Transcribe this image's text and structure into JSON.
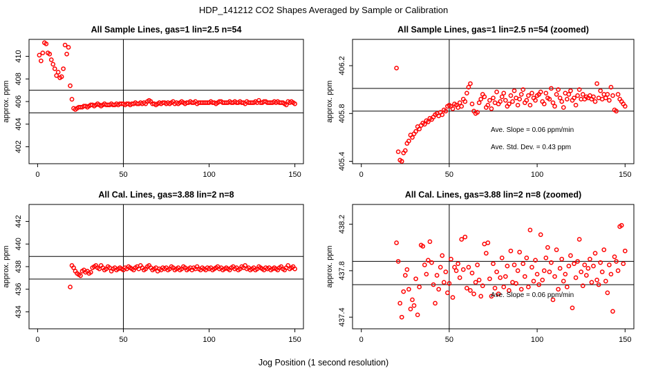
{
  "figure_title": "HDP_141212  CO2 Shapes Averaged by Sample or Calibration",
  "figure_xlabel": "Jog Position (1 second resolution)",
  "colors": {
    "points": "#ff0000",
    "lines": "#000000",
    "frame": "#000000"
  },
  "chart_data": [
    {
      "type": "scatter",
      "title": "All Sample Lines, gas=1 lin=2.5 n=54",
      "xlabel": "",
      "ylabel": "approx. ppm",
      "xlim": [
        -5,
        155
      ],
      "ylim": [
        400.5,
        411.5
      ],
      "xticks": [
        0,
        50,
        100,
        150
      ],
      "yticks": [
        402,
        404,
        406,
        408,
        410
      ],
      "vline": 50,
      "hlines": [
        407.0,
        405.0
      ],
      "annotations": [],
      "x": [
        1,
        2,
        3,
        4,
        5,
        6,
        7,
        8,
        9,
        10,
        11,
        12,
        13,
        14,
        15,
        16,
        17,
        18,
        19,
        20,
        21,
        22,
        23,
        24,
        25,
        26,
        27,
        28,
        29,
        30,
        31,
        32,
        33,
        34,
        35,
        36,
        37,
        38,
        39,
        40,
        41,
        42,
        43,
        44,
        45,
        46,
        47,
        48,
        49,
        50,
        51,
        52,
        53,
        54,
        55,
        56,
        57,
        58,
        59,
        60,
        61,
        62,
        63,
        64,
        65,
        66,
        67,
        68,
        69,
        70,
        71,
        72,
        73,
        74,
        75,
        76,
        77,
        78,
        79,
        80,
        81,
        82,
        83,
        84,
        85,
        86,
        87,
        88,
        89,
        90,
        91,
        92,
        93,
        94,
        95,
        96,
        97,
        98,
        99,
        100,
        101,
        102,
        103,
        104,
        105,
        106,
        107,
        108,
        109,
        110,
        111,
        112,
        113,
        114,
        115,
        116,
        117,
        118,
        119,
        120,
        121,
        122,
        123,
        124,
        125,
        126,
        127,
        128,
        129,
        130,
        131,
        132,
        133,
        134,
        135,
        136,
        137,
        138,
        139,
        140,
        141,
        142,
        143,
        144,
        145,
        146,
        147,
        148,
        149,
        150
      ],
      "y": [
        410.1,
        409.6,
        410.3,
        411.2,
        411.1,
        410.3,
        410.2,
        409.7,
        409.3,
        408.9,
        408.3,
        408.6,
        408.1,
        408.2,
        408.9,
        411.0,
        410.2,
        410.8,
        407.4,
        406.2,
        405.4,
        405.3,
        405.4,
        405.5,
        405.5,
        405.5,
        405.6,
        405.6,
        405.5,
        405.6,
        405.7,
        405.7,
        405.6,
        405.7,
        405.8,
        405.7,
        405.6,
        405.7,
        405.8,
        405.7,
        405.7,
        405.7,
        405.8,
        405.7,
        405.7,
        405.8,
        405.7,
        405.8,
        405.8,
        405.8,
        405.7,
        405.8,
        405.8,
        405.7,
        405.8,
        405.8,
        405.9,
        405.8,
        405.8,
        405.9,
        405.8,
        405.9,
        405.8,
        406.0,
        406.1,
        406.0,
        405.8,
        405.8,
        405.7,
        405.8,
        405.9,
        405.8,
        405.9,
        405.9,
        405.8,
        405.9,
        405.8,
        405.9,
        406.0,
        405.8,
        405.9,
        405.8,
        405.9,
        406.0,
        405.9,
        405.8,
        405.9,
        405.9,
        406.0,
        405.9,
        405.9,
        406.0,
        405.8,
        405.9,
        405.9,
        405.9,
        405.9,
        405.9,
        405.9,
        405.9,
        406.0,
        405.9,
        405.9,
        405.8,
        405.9,
        406.0,
        406.0,
        405.9,
        405.9,
        405.9,
        405.9,
        406.0,
        405.9,
        405.9,
        406.0,
        405.9,
        405.9,
        406.0,
        405.9,
        405.9,
        405.8,
        406.0,
        405.9,
        405.9,
        405.9,
        405.9,
        406.0,
        405.9,
        406.1,
        405.9,
        405.9,
        406.0,
        406.0,
        405.9,
        405.9,
        405.9,
        405.9,
        406.0,
        405.9,
        406.0,
        405.9,
        405.9,
        405.9,
        405.8,
        405.7,
        406.0,
        405.9,
        406.0,
        405.9,
        405.8
      ]
    },
    {
      "type": "scatter",
      "title": "All Sample Lines, gas=1 lin=2.5 n=54 (zoomed)",
      "xlabel": "",
      "ylabel": "approx. ppm",
      "xlim": [
        -5,
        155
      ],
      "ylim": [
        405.38,
        406.42
      ],
      "xticks": [
        0,
        50,
        100,
        150
      ],
      "yticks": [
        405.4,
        405.8,
        406.2
      ],
      "vline": 50,
      "hlines": [
        406.01,
        405.82
      ],
      "annotations": [
        "Ave. Slope =  0.06  ppm/min",
        "Ave. Std. Dev. =  0.43  ppm"
      ],
      "x": [
        20,
        21,
        22,
        23,
        24,
        25,
        26,
        27,
        28,
        29,
        30,
        31,
        32,
        33,
        34,
        35,
        36,
        37,
        38,
        39,
        40,
        41,
        42,
        43,
        44,
        45,
        46,
        47,
        48,
        49,
        50,
        51,
        52,
        53,
        54,
        55,
        56,
        57,
        58,
        59,
        60,
        61,
        62,
        63,
        64,
        65,
        66,
        67,
        68,
        69,
        70,
        71,
        72,
        73,
        74,
        75,
        76,
        77,
        78,
        79,
        80,
        81,
        82,
        83,
        84,
        85,
        86,
        87,
        88,
        89,
        90,
        91,
        92,
        93,
        94,
        95,
        96,
        97,
        98,
        99,
        100,
        101,
        102,
        103,
        104,
        105,
        106,
        107,
        108,
        109,
        110,
        111,
        112,
        113,
        114,
        115,
        116,
        117,
        118,
        119,
        120,
        121,
        122,
        123,
        124,
        125,
        126,
        127,
        128,
        129,
        130,
        131,
        132,
        133,
        134,
        135,
        136,
        137,
        138,
        139,
        140,
        141,
        142,
        143,
        144,
        145,
        146,
        147,
        148,
        149,
        150
      ],
      "y": [
        406.18,
        405.48,
        405.41,
        405.4,
        405.47,
        405.49,
        405.55,
        405.57,
        405.62,
        405.6,
        405.63,
        405.65,
        405.69,
        405.67,
        405.7,
        405.72,
        405.71,
        405.74,
        405.73,
        405.76,
        405.75,
        405.77,
        405.79,
        405.8,
        405.78,
        405.81,
        405.79,
        405.83,
        405.82,
        405.86,
        405.87,
        405.86,
        405.84,
        405.88,
        405.87,
        405.85,
        405.89,
        405.86,
        405.92,
        405.9,
        405.97,
        406.02,
        406.05,
        405.88,
        405.82,
        405.8,
        405.81,
        405.89,
        405.92,
        405.96,
        405.94,
        405.85,
        405.87,
        405.91,
        405.84,
        405.93,
        405.89,
        405.98,
        405.88,
        405.9,
        405.94,
        405.97,
        405.91,
        405.86,
        405.88,
        405.95,
        405.9,
        405.99,
        405.93,
        405.87,
        405.92,
        405.96,
        406.0,
        405.89,
        405.91,
        405.95,
        405.87,
        405.97,
        405.93,
        405.91,
        405.95,
        405.96,
        405.98,
        405.9,
        405.88,
        405.97,
        405.93,
        405.92,
        406.01,
        405.89,
        405.86,
        405.96,
        406.0,
        405.93,
        405.9,
        405.85,
        405.97,
        405.92,
        405.96,
        405.99,
        405.91,
        405.93,
        405.87,
        405.95,
        406.0,
        405.92,
        405.96,
        405.92,
        405.94,
        405.93,
        405.95,
        405.92,
        405.94,
        405.9,
        406.05,
        405.93,
        405.99,
        405.92,
        405.96,
        405.93,
        405.96,
        405.91,
        406.02,
        405.95,
        405.83,
        405.82,
        405.96,
        405.92,
        405.9,
        405.88,
        405.86
      ]
    },
    {
      "type": "scatter",
      "title": "All Cal. Lines, gas=3.88 lin=2 n=8",
      "xlabel": "",
      "ylabel": "approx. ppm",
      "xlim": [
        -5,
        155
      ],
      "ylim": [
        432.5,
        443.5
      ],
      "xticks": [
        0,
        50,
        100,
        150
      ],
      "yticks": [
        434,
        436,
        438,
        440,
        442
      ],
      "vline": 50,
      "hlines": [
        438.9,
        436.9
      ],
      "annotations": [],
      "x": [
        19,
        20,
        21,
        22,
        23,
        24,
        25,
        26,
        27,
        28,
        29,
        30,
        31,
        32,
        33,
        34,
        35,
        36,
        37,
        38,
        39,
        40,
        41,
        42,
        43,
        44,
        45,
        46,
        47,
        48,
        49,
        50,
        51,
        52,
        53,
        54,
        55,
        56,
        57,
        58,
        59,
        60,
        61,
        62,
        63,
        64,
        65,
        66,
        67,
        68,
        69,
        70,
        71,
        72,
        73,
        74,
        75,
        76,
        77,
        78,
        79,
        80,
        81,
        82,
        83,
        84,
        85,
        86,
        87,
        88,
        89,
        90,
        91,
        92,
        93,
        94,
        95,
        96,
        97,
        98,
        99,
        100,
        101,
        102,
        103,
        104,
        105,
        106,
        107,
        108,
        109,
        110,
        111,
        112,
        113,
        114,
        115,
        116,
        117,
        118,
        119,
        120,
        121,
        122,
        123,
        124,
        125,
        126,
        127,
        128,
        129,
        130,
        131,
        132,
        133,
        134,
        135,
        136,
        137,
        138,
        139,
        140,
        141,
        142,
        143,
        144,
        145,
        146,
        147,
        148,
        149,
        150
      ],
      "y": [
        436.2,
        438.1,
        437.9,
        437.6,
        437.4,
        437.3,
        437.2,
        437.6,
        437.7,
        437.5,
        437.6,
        437.4,
        437.5,
        437.9,
        438.0,
        438.1,
        437.9,
        437.8,
        438.1,
        437.9,
        437.7,
        437.8,
        438.0,
        437.9,
        437.6,
        437.8,
        437.9,
        437.7,
        437.8,
        437.9,
        437.8,
        437.7,
        437.9,
        437.8,
        438.0,
        437.9,
        437.8,
        437.7,
        437.9,
        438.0,
        437.8,
        438.1,
        437.9,
        437.7,
        437.8,
        438.0,
        438.1,
        437.9,
        437.7,
        437.8,
        437.9,
        437.6,
        437.8,
        437.7,
        437.9,
        437.8,
        437.9,
        437.7,
        437.8,
        438.0,
        437.9,
        437.7,
        437.8,
        437.9,
        437.7,
        437.8,
        438.0,
        437.9,
        437.7,
        437.8,
        437.9,
        437.7,
        437.9,
        437.8,
        438.0,
        437.8,
        437.7,
        437.9,
        437.8,
        437.7,
        437.9,
        437.8,
        437.9,
        437.7,
        437.8,
        437.9,
        438.0,
        437.8,
        437.9,
        437.7,
        437.8,
        437.9,
        437.8,
        437.7,
        437.9,
        438.0,
        437.8,
        437.9,
        437.7,
        437.8,
        438.0,
        437.9,
        438.1,
        437.8,
        437.9,
        437.7,
        437.8,
        437.9,
        437.7,
        437.8,
        438.0,
        437.9,
        437.8,
        437.7,
        437.9,
        437.8,
        437.9,
        437.7,
        437.8,
        437.9,
        437.8,
        437.7,
        437.9,
        438.0,
        437.8,
        437.7,
        437.9,
        438.1,
        437.8,
        437.9,
        438.0,
        437.8
      ]
    },
    {
      "type": "scatter",
      "title": "All Cal. Lines, gas=3.88 lin=2 n=8 (zoomed)",
      "xlabel": "",
      "ylabel": "approx. ppm",
      "xlim": [
        -5,
        155
      ],
      "ylim": [
        437.3,
        438.37
      ],
      "xticks": [
        0,
        50,
        100,
        150
      ],
      "yticks": [
        437.4,
        437.8,
        438.2
      ],
      "vline": 50,
      "hlines": [
        437.88,
        437.68
      ],
      "annotations": [
        "Ave. Slope =  0.06  ppm/min"
      ],
      "x": [
        20,
        21,
        22,
        23,
        24,
        25,
        26,
        27,
        28,
        29,
        30,
        31,
        32,
        33,
        34,
        35,
        36,
        37,
        38,
        39,
        40,
        41,
        42,
        43,
        44,
        45,
        46,
        47,
        48,
        49,
        50,
        51,
        52,
        53,
        54,
        55,
        56,
        57,
        58,
        59,
        60,
        61,
        62,
        63,
        64,
        65,
        66,
        67,
        68,
        69,
        70,
        71,
        72,
        73,
        74,
        75,
        76,
        77,
        78,
        79,
        80,
        81,
        82,
        83,
        84,
        85,
        86,
        87,
        88,
        89,
        90,
        91,
        92,
        93,
        94,
        95,
        96,
        97,
        98,
        99,
        100,
        101,
        102,
        103,
        104,
        105,
        106,
        107,
        108,
        109,
        110,
        111,
        112,
        113,
        114,
        115,
        116,
        117,
        118,
        119,
        120,
        121,
        122,
        123,
        124,
        125,
        126,
        127,
        128,
        129,
        130,
        131,
        132,
        133,
        134,
        135,
        136,
        137,
        138,
        139,
        140,
        141,
        142,
        143,
        144,
        145,
        146,
        147,
        148,
        149,
        150
      ],
      "y": [
        438.04,
        437.88,
        437.52,
        437.4,
        437.62,
        437.76,
        437.81,
        437.64,
        437.47,
        437.55,
        437.5,
        437.73,
        437.42,
        437.66,
        438.02,
        438.01,
        437.85,
        437.77,
        437.89,
        438.05,
        437.87,
        437.68,
        437.52,
        437.76,
        437.64,
        437.83,
        437.93,
        437.7,
        437.79,
        437.61,
        437.69,
        437.9,
        437.57,
        437.83,
        437.8,
        437.86,
        437.74,
        438.07,
        437.81,
        438.09,
        437.65,
        437.83,
        437.63,
        437.78,
        437.6,
        437.7,
        437.85,
        437.72,
        437.58,
        437.67,
        438.03,
        437.95,
        438.04,
        437.73,
        437.58,
        437.86,
        437.65,
        437.79,
        437.6,
        437.74,
        437.91,
        437.66,
        437.75,
        437.84,
        437.63,
        437.97,
        437.7,
        437.85,
        437.69,
        437.8,
        437.96,
        437.64,
        437.86,
        437.75,
        437.91,
        437.66,
        438.15,
        437.83,
        437.71,
        437.89,
        437.77,
        437.68,
        438.11,
        437.72,
        437.8,
        437.91,
        438.0,
        437.79,
        437.87,
        437.55,
        437.75,
        437.98,
        437.64,
        437.82,
        437.9,
        437.71,
        437.77,
        437.66,
        437.84,
        437.93,
        437.48,
        437.86,
        437.74,
        437.88,
        438.07,
        437.79,
        437.67,
        437.85,
        437.76,
        437.82,
        437.9,
        437.7,
        437.84,
        437.95,
        437.72,
        437.68,
        437.87,
        437.79,
        437.98,
        437.71,
        437.61,
        437.85,
        437.77,
        437.45,
        437.92,
        437.88,
        437.8,
        438.18,
        438.19,
        437.86,
        437.97
      ]
    }
  ]
}
